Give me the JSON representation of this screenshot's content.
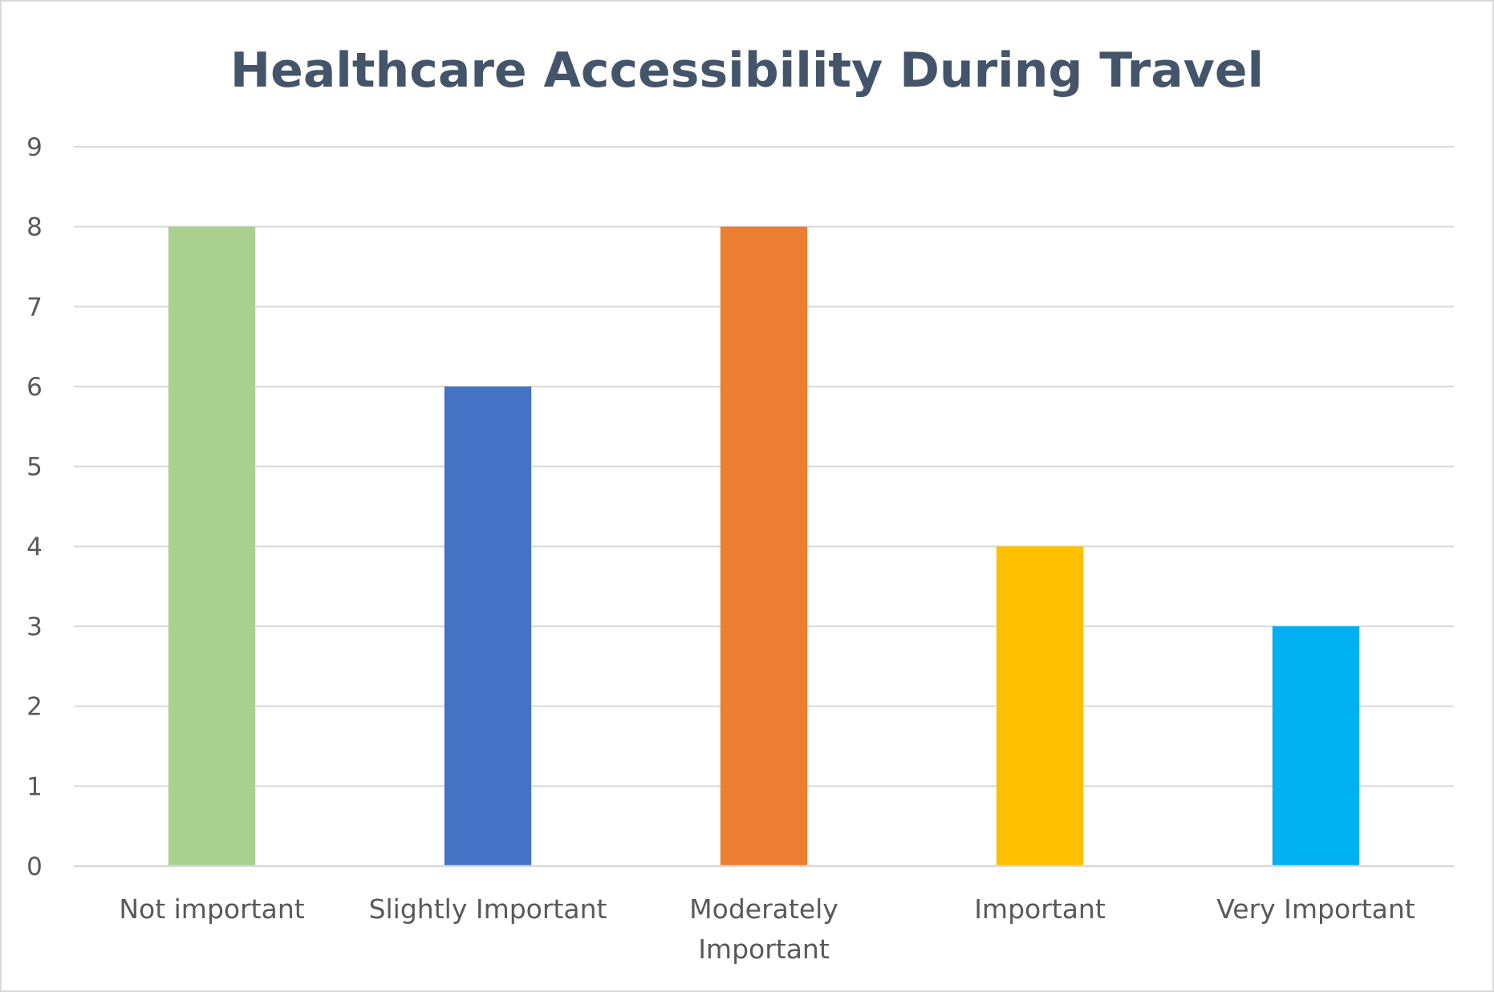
{
  "chart_data": {
    "type": "bar",
    "title": "Healthcare Accessibility During Travel",
    "xlabel": "",
    "ylabel": "",
    "categories": [
      [
        "Not important"
      ],
      [
        "Slightly Important"
      ],
      [
        "Moderately",
        "Important"
      ],
      [
        "Important"
      ],
      [
        "Very Important"
      ]
    ],
    "values": [
      8,
      6,
      8,
      4,
      3
    ],
    "colors": [
      "#a9d18e",
      "#4472c4",
      "#ed7d31",
      "#ffc000",
      "#00b0f0"
    ],
    "ylim": [
      0,
      9
    ],
    "yticks": [
      "0",
      "1",
      "2",
      "3",
      "4",
      "5",
      "6",
      "7",
      "8",
      "9"
    ],
    "grid": true,
    "legend": "none"
  }
}
